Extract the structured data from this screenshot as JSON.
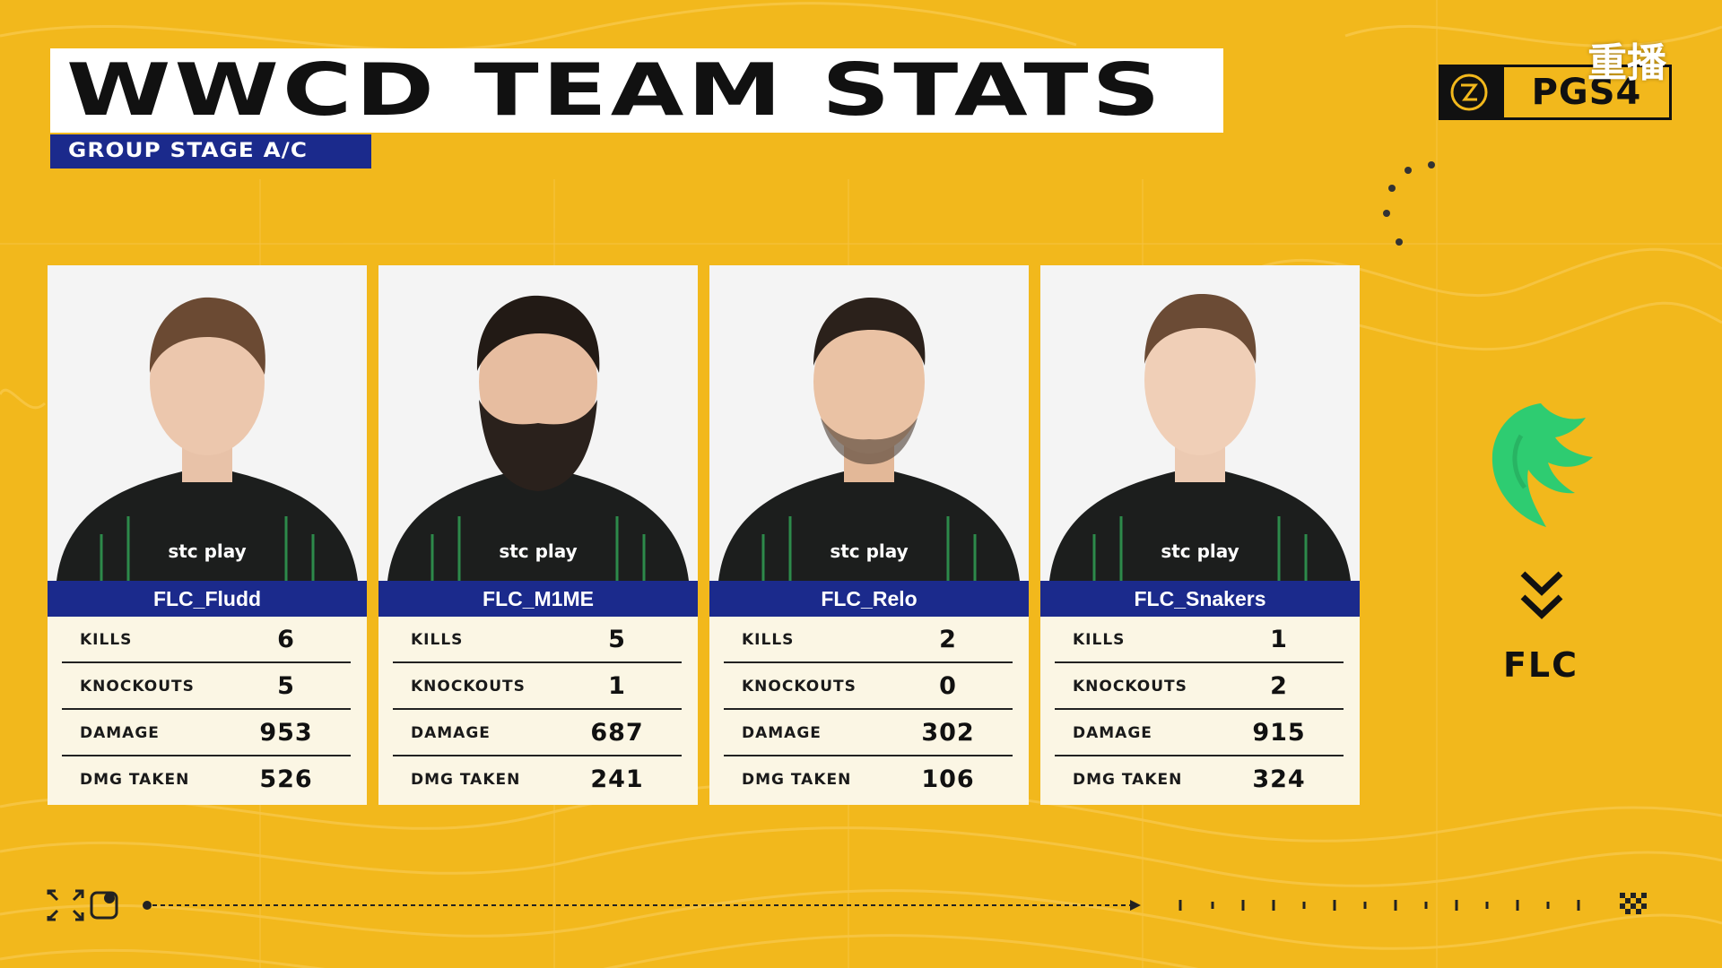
{
  "header": {
    "title": "WWCD TEAM STATS",
    "subtitle": "GROUP STAGE A/C"
  },
  "event": {
    "name": "PGS4",
    "replay_label": "重播"
  },
  "stat_labels": [
    "KILLS",
    "KNOCKOUTS",
    "DAMAGE",
    "DMG TAKEN"
  ],
  "players": [
    {
      "name": "FLC_Fludd",
      "stats": [
        "6",
        "5",
        "953",
        "526"
      ]
    },
    {
      "name": "FLC_M1ME",
      "stats": [
        "5",
        "1",
        "687",
        "241"
      ]
    },
    {
      "name": "FLC_Relo",
      "stats": [
        "2",
        "0",
        "302",
        "106"
      ]
    },
    {
      "name": "FLC_Snakers",
      "stats": [
        "1",
        "2",
        "915",
        "324"
      ]
    }
  ],
  "team": {
    "tag": "FLC"
  },
  "colors": {
    "background": "#f2b81c",
    "accent_blue": "#1b2a8c",
    "team_green": "#2ecc71"
  }
}
